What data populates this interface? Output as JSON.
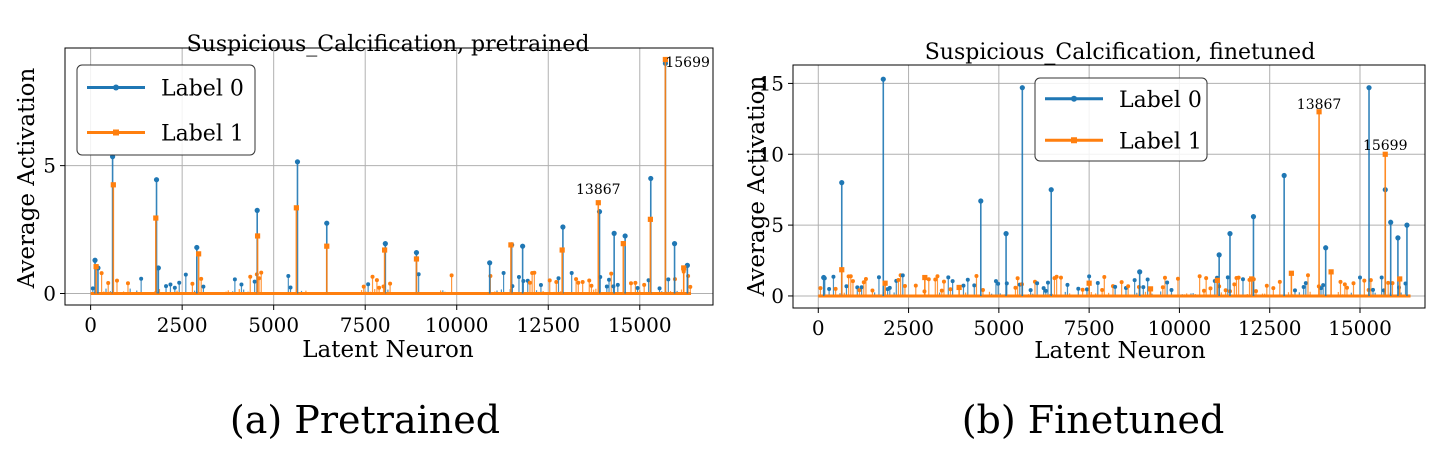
{
  "colors": {
    "label0": "#1f77b4",
    "label1": "#ff7f0e",
    "grid": "#b0b0b0",
    "axes": "#000000"
  },
  "chart_data": [
    {
      "type": "line",
      "title": "Suspicious_Calcification, pretrained",
      "xlabel": "Latent Neuron",
      "ylabel": "Average Activation",
      "xlim": [
        -700,
        17000
      ],
      "ylim": [
        -0.45,
        9.6
      ],
      "xticks": [
        0,
        2500,
        5000,
        7500,
        10000,
        12500,
        15000
      ],
      "xtick_labels": [
        "0",
        "2500",
        "5000",
        "7500",
        "10000",
        "12500",
        "15000"
      ],
      "yticks": [
        0,
        5
      ],
      "ytick_labels": [
        "0",
        "5"
      ],
      "grid": true,
      "legend": "upper-left",
      "legend_labels": [
        "Label 0",
        "Label 1"
      ],
      "series": [
        {
          "name": "Label 0",
          "color": "#1f77b4",
          "x": [
            120,
            200,
            600,
            1800,
            1850,
            2900,
            4550,
            5650,
            6450,
            8050,
            8900,
            10900,
            11500,
            11800,
            12900,
            13900,
            14300,
            14600,
            15300,
            15700,
            15950,
            16300
          ],
          "y": [
            1.3,
            1.0,
            5.35,
            4.45,
            1.0,
            1.8,
            3.25,
            5.15,
            2.75,
            1.95,
            1.6,
            1.2,
            1.9,
            1.85,
            2.6,
            3.2,
            2.35,
            2.25,
            4.5,
            9.0,
            1.95,
            1.1
          ]
        },
        {
          "name": "Label 1",
          "color": "#ff7f0e",
          "x": [
            150,
            620,
            1780,
            2950,
            4560,
            5620,
            6450,
            8030,
            8900,
            11480,
            12880,
            13867,
            14550,
            15290,
            15699,
            16200
          ],
          "y": [
            1.05,
            4.25,
            2.95,
            1.55,
            2.25,
            3.35,
            1.85,
            1.7,
            1.35,
            1.9,
            1.7,
            3.55,
            1.95,
            2.9,
            9.15,
            1.0
          ]
        }
      ],
      "annotations": [
        {
          "text": "13867",
          "x": 13867,
          "y": 3.9
        },
        {
          "text": "15699",
          "x": 15699,
          "y": 8.85
        }
      ]
    },
    {
      "type": "line",
      "title": "Suspicious_Calcification, finetuned",
      "xlabel": "Latent Neuron",
      "ylabel": "Average Activation",
      "xlim": [
        -700,
        16800
      ],
      "ylim": [
        -0.85,
        16.3
      ],
      "xticks": [
        0,
        2500,
        5000,
        7500,
        10000,
        12500,
        15000
      ],
      "xtick_labels": [
        "0",
        "2500",
        "5000",
        "7500",
        "10000",
        "12500",
        "15000"
      ],
      "yticks": [
        0,
        5,
        10,
        15
      ],
      "ytick_labels": [
        "0",
        "5",
        "10",
        "15"
      ],
      "grid": true,
      "legend": "upper-center",
      "legend_labels": [
        "Label 0",
        "Label 1"
      ],
      "series": [
        {
          "name": "Label 0",
          "color": "#1f77b4",
          "x": [
            150,
            650,
            1800,
            4500,
            5200,
            5650,
            6450,
            8900,
            11100,
            11400,
            12050,
            12900,
            14050,
            15250,
            15700,
            15850,
            16050,
            16300
          ],
          "y": [
            1.3,
            8.0,
            15.3,
            6.7,
            4.4,
            14.7,
            7.5,
            1.7,
            2.9,
            4.4,
            5.6,
            8.5,
            3.4,
            14.7,
            7.5,
            5.2,
            4.1,
            5.0
          ]
        },
        {
          "name": "Label 1",
          "color": "#ff7f0e",
          "x": [
            650,
            1850,
            2950,
            3900,
            7500,
            9200,
            11050,
            12000,
            13100,
            13867,
            14200,
            15699,
            16100
          ],
          "y": [
            1.85,
            0.9,
            1.3,
            0.6,
            0.9,
            0.5,
            1.1,
            1.2,
            1.6,
            13.0,
            1.7,
            10.0,
            1.2
          ]
        }
      ],
      "annotations": [
        {
          "text": "13867",
          "x": 13867,
          "y": 13.2
        },
        {
          "text": "15699",
          "x": 15699,
          "y": 10.3
        }
      ]
    }
  ],
  "captions": [
    "(a) Pretrained",
    "(b) Finetuned"
  ]
}
